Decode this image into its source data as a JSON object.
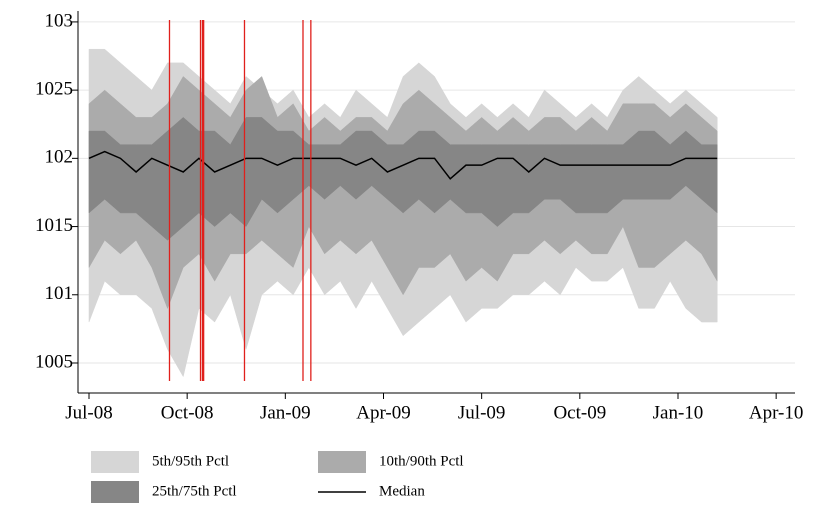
{
  "chart_data": {
    "type": "fan",
    "x": [
      2008.5,
      2008.54,
      2008.58,
      2008.62,
      2008.66,
      2008.7,
      2008.74,
      2008.78,
      2008.82,
      2008.86,
      2008.9,
      2008.94,
      2008.98,
      2009.02,
      2009.06,
      2009.1,
      2009.14,
      2009.18,
      2009.22,
      2009.26,
      2009.3,
      2009.34,
      2009.38,
      2009.42,
      2009.46,
      2009.5,
      2009.54,
      2009.58,
      2009.62,
      2009.66,
      2009.7,
      2009.74,
      2009.78,
      2009.82,
      2009.86,
      2009.9,
      2009.94,
      2009.98,
      2010.02,
      2010.06,
      2010.1
    ],
    "series": [
      {
        "name": "5th/95th Pctl",
        "color": "#d6d6d6",
        "low": [
          100.8,
          101.1,
          101.0,
          101.0,
          100.9,
          100.6,
          100.4,
          100.9,
          100.8,
          101.0,
          100.6,
          101.0,
          101.1,
          101.0,
          101.2,
          101.0,
          101.1,
          100.9,
          101.1,
          100.9,
          100.7,
          100.8,
          100.9,
          101.0,
          100.8,
          100.9,
          100.9,
          101.0,
          101.0,
          101.1,
          101.0,
          101.2,
          101.1,
          101.1,
          101.2,
          100.9,
          100.9,
          101.1,
          100.9,
          100.8,
          100.8
        ],
        "high": [
          102.8,
          102.8,
          102.7,
          102.6,
          102.5,
          102.7,
          102.7,
          102.6,
          102.5,
          102.4,
          102.6,
          102.5,
          102.4,
          102.5,
          102.3,
          102.4,
          102.3,
          102.5,
          102.4,
          102.3,
          102.6,
          102.7,
          102.6,
          102.4,
          102.3,
          102.4,
          102.3,
          102.4,
          102.3,
          102.5,
          102.4,
          102.3,
          102.4,
          102.3,
          102.5,
          102.6,
          102.5,
          102.4,
          102.5,
          102.4,
          102.3
        ]
      },
      {
        "name": "10th/90th Pctl",
        "color": "#ababab",
        "low": [
          101.2,
          101.4,
          101.3,
          101.4,
          101.2,
          100.9,
          101.2,
          101.3,
          101.1,
          101.3,
          101.3,
          101.4,
          101.3,
          101.2,
          101.5,
          101.3,
          101.4,
          101.3,
          101.4,
          101.2,
          101.0,
          101.2,
          101.2,
          101.3,
          101.1,
          101.2,
          101.1,
          101.3,
          101.3,
          101.4,
          101.3,
          101.4,
          101.3,
          101.3,
          101.5,
          101.2,
          101.2,
          101.3,
          101.4,
          101.3,
          101.1
        ],
        "high": [
          102.4,
          102.5,
          102.4,
          102.3,
          102.3,
          102.4,
          102.6,
          102.5,
          102.4,
          102.3,
          102.5,
          102.6,
          102.3,
          102.4,
          102.2,
          102.3,
          102.2,
          102.3,
          102.3,
          102.2,
          102.4,
          102.5,
          102.4,
          102.3,
          102.2,
          102.3,
          102.2,
          102.3,
          102.2,
          102.3,
          102.3,
          102.2,
          102.3,
          102.2,
          102.4,
          102.4,
          102.4,
          102.3,
          102.4,
          102.3,
          102.2
        ]
      },
      {
        "name": "25th/75th Pctl",
        "color": "#868686",
        "low": [
          101.6,
          101.7,
          101.6,
          101.6,
          101.5,
          101.4,
          101.5,
          101.6,
          101.5,
          101.6,
          101.5,
          101.7,
          101.6,
          101.7,
          101.8,
          101.7,
          101.8,
          101.7,
          101.8,
          101.7,
          101.6,
          101.7,
          101.6,
          101.7,
          101.6,
          101.6,
          101.5,
          101.6,
          101.6,
          101.7,
          101.7,
          101.6,
          101.6,
          101.6,
          101.7,
          101.7,
          101.7,
          101.7,
          101.8,
          101.7,
          101.6
        ],
        "high": [
          102.2,
          102.2,
          102.1,
          102.1,
          102.1,
          102.2,
          102.3,
          102.2,
          102.2,
          102.1,
          102.3,
          102.3,
          102.2,
          102.2,
          102.1,
          102.1,
          102.1,
          102.2,
          102.2,
          102.1,
          102.1,
          102.2,
          102.2,
          102.1,
          102.1,
          102.1,
          102.1,
          102.1,
          102.1,
          102.1,
          102.1,
          102.1,
          102.1,
          102.1,
          102.1,
          102.2,
          102.2,
          102.1,
          102.2,
          102.1,
          102.1
        ]
      },
      {
        "name": "Median",
        "color": "#000000",
        "values": [
          102.0,
          102.05,
          102.0,
          101.9,
          102.0,
          101.95,
          101.9,
          102.0,
          101.9,
          101.95,
          102.0,
          102.0,
          101.95,
          102.0,
          102.0,
          102.0,
          102.0,
          101.95,
          102.0,
          101.9,
          101.95,
          102.0,
          102.0,
          101.85,
          101.95,
          101.95,
          102.0,
          102.0,
          101.9,
          102.0,
          101.95,
          101.95,
          101.95,
          101.95,
          101.95,
          101.95,
          101.95,
          101.95,
          102.0,
          102.0,
          102.0
        ]
      }
    ],
    "events": {
      "color": "#e0201c",
      "x": [
        2008.705,
        2008.784,
        2008.789,
        2008.792,
        2008.896,
        2009.045,
        2009.065
      ]
    },
    "xlim": [
      2008.472,
      2010.298
    ],
    "xticks": [
      {
        "value": 2008.5,
        "label": "Jul-08"
      },
      {
        "value": 2008.75,
        "label": "Oct-08"
      },
      {
        "value": 2009.0,
        "label": "Jan-09"
      },
      {
        "value": 2009.25,
        "label": "Apr-09"
      },
      {
        "value": 2009.5,
        "label": "Jul-09"
      },
      {
        "value": 2009.75,
        "label": "Oct-09"
      },
      {
        "value": 2010.0,
        "label": "Jan-10"
      },
      {
        "value": 2010.25,
        "label": "Apr-10"
      }
    ],
    "ylim": [
      100.28,
      103.08
    ],
    "yticks": [
      {
        "value": 100.5,
        "label": "1005"
      },
      101,
      {
        "value": 101.5,
        "label": "1015"
      },
      102,
      {
        "value": 102.5,
        "label": "1025"
      },
      103
    ],
    "grid": true
  }
}
